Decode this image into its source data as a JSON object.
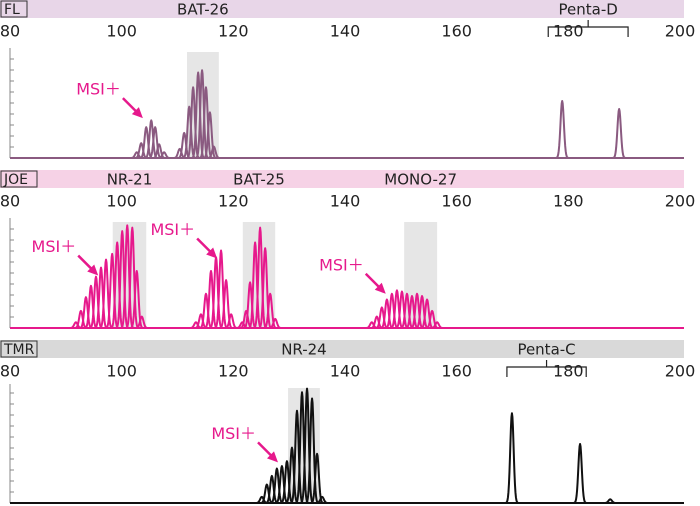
{
  "chart_data": [
    {
      "type": "electropherogram",
      "channel": "FL",
      "header_color": "#e8d6e8",
      "color": "#8a5a80",
      "xlim": [
        80,
        200
      ],
      "xticks": [
        80,
        100,
        120,
        140,
        160,
        180,
        200
      ],
      "ylim": [
        0,
        100
      ],
      "markers": [
        {
          "name": "BAT-26",
          "range": [
            111.7,
            117.4
          ],
          "shade": true
        },
        {
          "name": "Penta-D",
          "range": [
            176.4,
            190.7
          ],
          "shade": false
        }
      ],
      "x": [
        102.7,
        103.5,
        104.4,
        105.3,
        106.0,
        106.7,
        107.6,
        110.4,
        111.2,
        112.1,
        112.8,
        113.7,
        114.4,
        115.1,
        115.8,
        116.5,
        178.9,
        189.1
      ],
      "values": [
        5,
        13,
        27,
        33,
        27,
        12,
        5,
        8,
        22,
        45,
        62,
        75,
        77,
        62,
        40,
        10,
        50,
        43
      ],
      "annotations": [
        {
          "text": "MSI＋",
          "x": 103.8,
          "y": 35
        }
      ]
    },
    {
      "type": "electropherogram",
      "channel": "JOE",
      "header_color": "#f6d2e6",
      "color": "#e6198c",
      "xlim": [
        80,
        200
      ],
      "xticks": [
        80,
        100,
        120,
        140,
        160,
        180,
        200
      ],
      "ylim": [
        0,
        100
      ],
      "markers": [
        {
          "name": "NR-21",
          "range": [
            98.4,
            104.4
          ],
          "shade": true
        },
        {
          "name": "BAT-25",
          "range": [
            121.7,
            127.5
          ],
          "shade": true
        },
        {
          "name": "MONO-27",
          "range": [
            150.6,
            156.5
          ],
          "shade": true
        }
      ],
      "x": [
        91.8,
        92.7,
        93.6,
        94.5,
        95.4,
        96.3,
        97.2,
        98.3,
        99.2,
        100.1,
        101.0,
        101.9,
        102.7,
        103.6,
        113.3,
        114.2,
        115.1,
        116.0,
        116.9,
        117.8,
        118.7,
        119.6,
        121.6,
        122.3,
        123.0,
        123.9,
        124.8,
        125.7,
        126.6,
        127.5,
        144.8,
        145.7,
        146.6,
        147.5,
        148.4,
        149.3,
        150.2,
        151.1,
        152.0,
        152.9,
        153.8,
        154.7,
        155.6,
        156.5
      ],
      "values": [
        5,
        15,
        27,
        37,
        45,
        53,
        60,
        65,
        75,
        85,
        90,
        88,
        50,
        10,
        5,
        12,
        30,
        50,
        62,
        68,
        42,
        12,
        5,
        15,
        40,
        75,
        88,
        70,
        30,
        8,
        5,
        10,
        18,
        25,
        30,
        33,
        32,
        30,
        28,
        30,
        28,
        25,
        15,
        5
      ],
      "annotations": [
        {
          "text": "MSI＋",
          "x": 95.8,
          "y": 46
        },
        {
          "text": "MSI＋",
          "x": 117.1,
          "y": 61
        },
        {
          "text": "MSI＋",
          "x": 147.3,
          "y": 30
        }
      ]
    },
    {
      "type": "electropherogram",
      "channel": "TMR",
      "header_color": "#d9d9d9",
      "color": "#111111",
      "xlim": [
        80,
        200
      ],
      "xticks": [
        80,
        100,
        120,
        140,
        160,
        180,
        200
      ],
      "ylim": [
        0,
        100
      ],
      "markers": [
        {
          "name": "NR-24",
          "range": [
            129.8,
            135.5
          ],
          "shade": true
        },
        {
          "name": "Penta-C",
          "range": [
            169.0,
            183.2
          ],
          "shade": false
        }
      ],
      "x": [
        125.1,
        126.0,
        126.9,
        127.8,
        128.7,
        129.6,
        130.5,
        131.4,
        132.3,
        133.2,
        134.1,
        135.0,
        135.9,
        169.9,
        182.1,
        187.5
      ],
      "values": [
        5,
        15,
        22,
        28,
        30,
        34,
        45,
        75,
        90,
        93,
        85,
        40,
        5,
        73,
        48,
        3
      ],
      "annotations": [
        {
          "text": "MSI＋",
          "x": 128.0,
          "y": 33
        }
      ]
    }
  ]
}
